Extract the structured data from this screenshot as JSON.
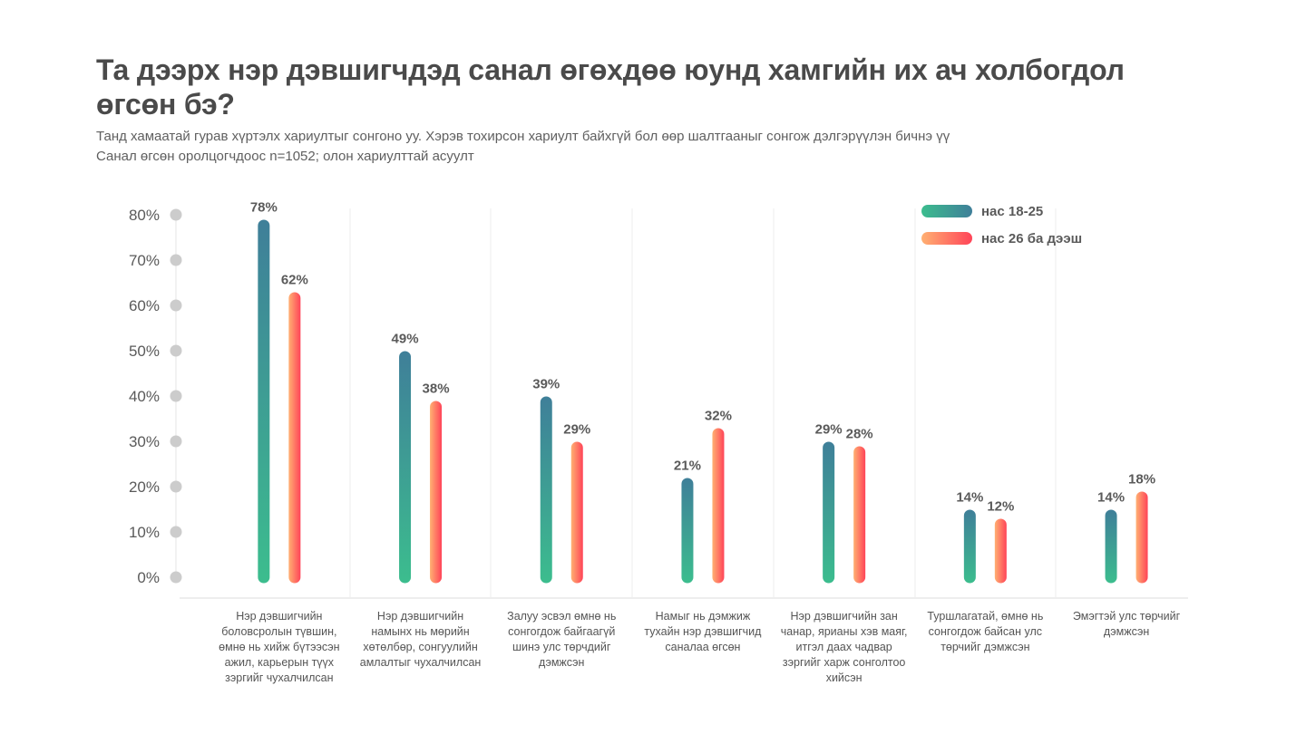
{
  "header": {
    "title": "Та дээрх нэр дэвшигчдэд санал өгөхдөө юунд хамгийн их ач холбогдол өгсөн бэ?",
    "subtitle_lines": [
      "Танд хамаатай гурав хүртэлх хариултыг сонгоно уу. Хэрэв тохирсон хариулт байхгүй бол өөр шалтгааныг сонгож дэлгэрүүлэн бичнэ үү",
      "Санал өгсөн оролцогчдоос n=1052; олон хариулттай асуулт"
    ]
  },
  "colors": {
    "young_start": "#3cbd8e",
    "young_end": "#3f7f99",
    "old_start": "#ffb072",
    "old_end": "#ff4458",
    "tick_dot": "#cccccc",
    "gridline": "#eeeeee",
    "text": "#555555"
  },
  "chart_data": {
    "type": "bar",
    "title": "Та дээрх нэр дэвшигчдэд санал өгөхдөө юунд хамгийн их ач холбогдол өгсөн бэ?",
    "xlabel": "",
    "ylabel": "",
    "ylim": [
      0,
      80
    ],
    "yticks": [
      0,
      10,
      20,
      30,
      40,
      50,
      60,
      70,
      80
    ],
    "ytick_labels": [
      "0%",
      "10%",
      "20%",
      "30%",
      "40%",
      "50%",
      "60%",
      "70%",
      "80%"
    ],
    "grid": false,
    "legend_position": "top-right",
    "categories": [
      "Нэр дэвшигчийн боловсролын түвшин, өмнө нь хийж бүтээсэн ажил, карьерын түүх зэргийг чухалчилсан",
      "Нэр дэвшигчийн намынх нь мөрийн хөтөлбөр, сонгуулийн амлалтыг чухалчилсан",
      "Залуу эсвэл өмнө нь сонгогдож байгаагүй шинэ улс төрчдийг дэмжсэн",
      "Намыг нь дэмжиж тухайн нэр дэвшигчид саналаа өгсөн",
      "Нэр дэвшигчийн зан чанар, ярианы хэв маяг, итгэл даах чадвар зэргийг харж сонголтоо хийсэн",
      "Туршлагатай, өмнө нь сонгогдож байсан улс төрчийг дэмжсэн",
      "Эмэгтэй улс төрчийг дэмжсэн"
    ],
    "series": [
      {
        "name": "нас 18-25",
        "values": [
          78,
          49,
          39,
          21,
          29,
          14,
          14
        ],
        "labels": [
          "78%",
          "49%",
          "39%",
          "21%",
          "29%",
          "14%",
          "14%"
        ]
      },
      {
        "name": "нас 26 ба дээш",
        "values": [
          62,
          38,
          29,
          32,
          28,
          12,
          18
        ],
        "labels": [
          "62%",
          "38%",
          "29%",
          "32%",
          "28%",
          "12%",
          "18%"
        ]
      }
    ]
  }
}
